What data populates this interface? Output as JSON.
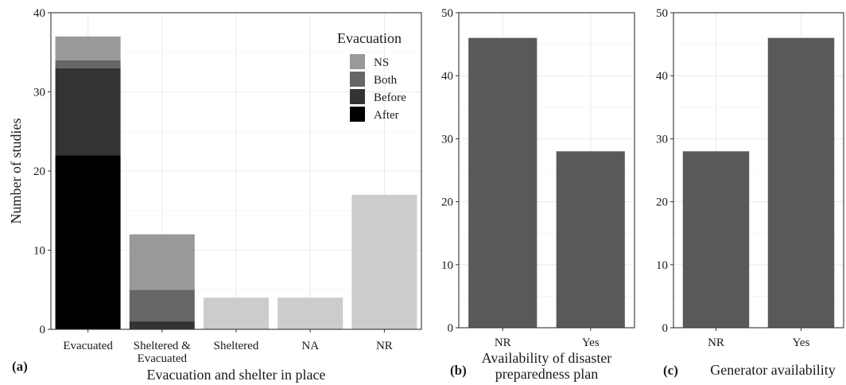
{
  "chart_data": [
    {
      "type": "bar",
      "panel_label": "(a)",
      "stacked": true,
      "categories": [
        "Evacuated",
        "Sheltered & Evacuated",
        "Sheltered",
        "NA",
        "NR"
      ],
      "category_labels": [
        [
          "Evacuated"
        ],
        [
          "Sheltered &",
          "Evacuated"
        ],
        [
          "Sheltered"
        ],
        [
          "NA"
        ],
        [
          "NR"
        ]
      ],
      "series": [
        {
          "name": "After",
          "color": "#000000",
          "values": [
            22,
            0,
            0,
            0,
            0
          ]
        },
        {
          "name": "Before",
          "color": "#333333",
          "values": [
            11,
            1,
            0,
            0,
            0
          ]
        },
        {
          "name": "Both",
          "color": "#666666",
          "values": [
            1,
            4,
            0,
            0,
            0
          ]
        },
        {
          "name": "NS",
          "color": "#999999",
          "values": [
            3,
            7,
            0,
            0,
            0
          ]
        },
        {
          "name": "",
          "color": "#cccccc",
          "values": [
            0,
            0,
            4,
            4,
            17
          ]
        }
      ],
      "legend": {
        "title": "Evacuation",
        "entries": [
          "NS",
          "Both",
          "Before",
          "After"
        ],
        "position": "top-right"
      },
      "xlabel": "Evacuation and shelter in place",
      "ylabel": "Number of studies",
      "ylim": [
        0,
        40
      ],
      "yticks": [
        0,
        10,
        20,
        30,
        40
      ],
      "grid": true
    },
    {
      "type": "bar",
      "panel_label": "(b)",
      "categories": [
        "NR",
        "Yes"
      ],
      "values": [
        46,
        28
      ],
      "color": "#595959",
      "xlabel_lines": [
        "Availability of disaster",
        "preparedness plan"
      ],
      "ylim": [
        0,
        50
      ],
      "yticks": [
        0,
        10,
        20,
        30,
        40,
        50
      ],
      "grid": true
    },
    {
      "type": "bar",
      "panel_label": "(c)",
      "categories": [
        "NR",
        "Yes"
      ],
      "values": [
        28,
        46
      ],
      "color": "#595959",
      "xlabel": "Generator availability",
      "ylim": [
        0,
        50
      ],
      "yticks": [
        0,
        10,
        20,
        30,
        40,
        50
      ],
      "grid": true
    }
  ]
}
